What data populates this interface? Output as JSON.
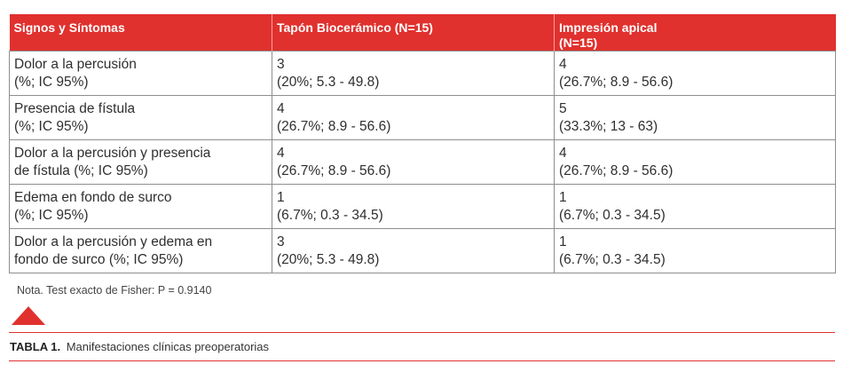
{
  "table": {
    "headers": [
      "Signos y Síntomas",
      "Tapón Biocerámico (N=15)",
      "Impresión apical (N=15)"
    ],
    "rows": [
      {
        "sign": [
          "Dolor a la percusión",
          "(%; IC 95%)"
        ],
        "bio": [
          "3",
          "(20%; 5.3 - 49.8)"
        ],
        "apical": [
          "4",
          "(26.7%; 8.9 - 56.6)"
        ]
      },
      {
        "sign": [
          "Presencia de fístula",
          "(%; IC 95%)"
        ],
        "bio": [
          "4",
          "(26.7%; 8.9 - 56.6)"
        ],
        "apical": [
          "5",
          "(33.3%; 13 - 63)"
        ]
      },
      {
        "sign": [
          "Dolor a la percusión y presencia",
          "de fístula (%; IC 95%)"
        ],
        "bio": [
          "4",
          "(26.7%; 8.9 - 56.6)"
        ],
        "apical": [
          "4",
          "(26.7%; 8.9 - 56.6)"
        ]
      },
      {
        "sign": [
          "Edema en fondo de surco",
          "(%; IC 95%)"
        ],
        "bio": [
          "1",
          "(6.7%; 0.3 - 34.5)"
        ],
        "apical": [
          "1",
          "(6.7%; 0.3 - 34.5)"
        ]
      },
      {
        "sign": [
          "Dolor a la percusión y edema en",
          "fondo de surco (%; IC 95%)"
        ],
        "bio": [
          "3",
          "(20%; 5.3 - 49.8)"
        ],
        "apical": [
          "1",
          "(6.7%; 0.3 - 34.5)"
        ]
      }
    ]
  },
  "note": "Nota. Test exacto de Fisher: P = 0.9140",
  "caption": {
    "label": "TABLA 1.",
    "text": "Manifestaciones clínicas preoperatorias"
  },
  "accent_color": "#e0312e"
}
